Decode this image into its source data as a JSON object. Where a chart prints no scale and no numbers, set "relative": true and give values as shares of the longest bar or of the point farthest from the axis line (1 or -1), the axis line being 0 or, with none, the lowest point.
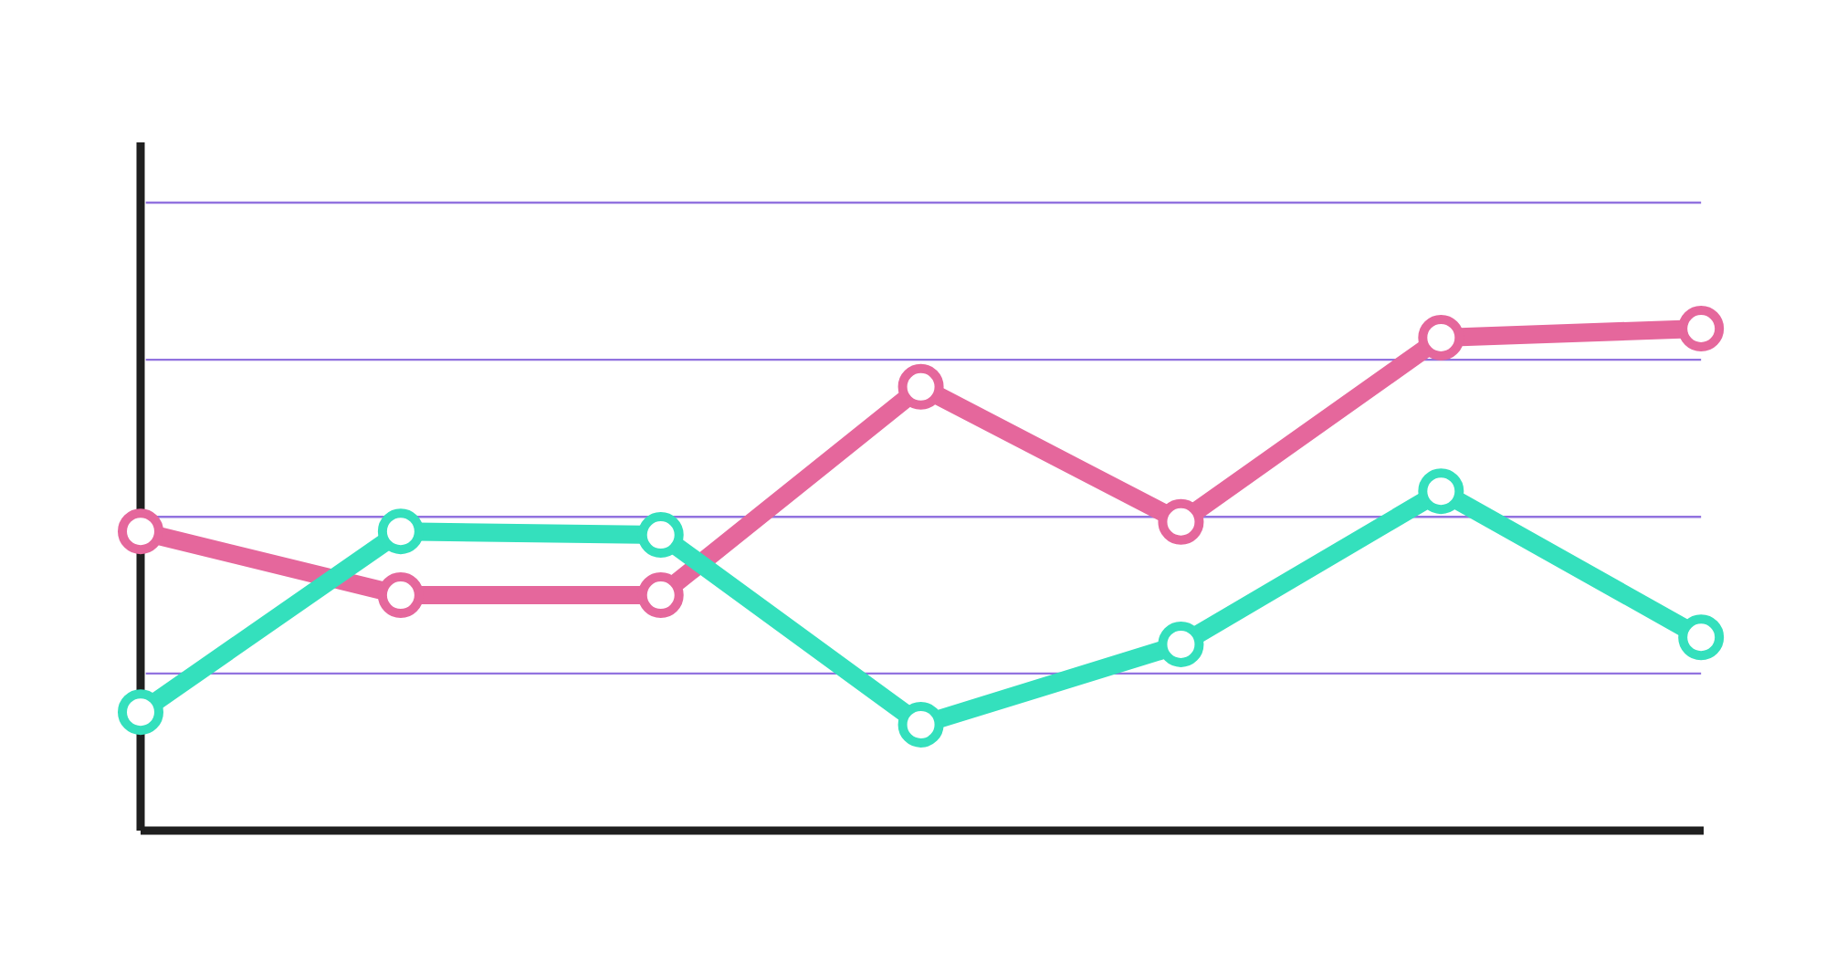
{
  "chart_data": {
    "type": "line",
    "relative": true,
    "categories": [
      null,
      null,
      null,
      null,
      null,
      null,
      null
    ],
    "marker": "circle",
    "line_style": "solid",
    "ref_lines": [
      {
        "axis": "y",
        "value": 0.313,
        "color": "#9273df"
      },
      {
        "axis": "y",
        "value": 0.625,
        "color": "#9273df"
      },
      {
        "axis": "y",
        "value": 0.938,
        "color": "#9273df"
      },
      {
        "axis": "y",
        "value": 1.251,
        "color": "#9273df"
      }
    ],
    "series": [
      {
        "color": "#e5679c",
        "values": [
          0.596,
          0.469,
          0.469,
          0.884,
          0.615,
          0.982,
          1
        ]
      },
      {
        "color": "#34e0bd",
        "values": [
          0.236,
          0.596,
          0.589,
          0.211,
          0.371,
          0.676,
          0.385
        ]
      }
    ]
  }
}
